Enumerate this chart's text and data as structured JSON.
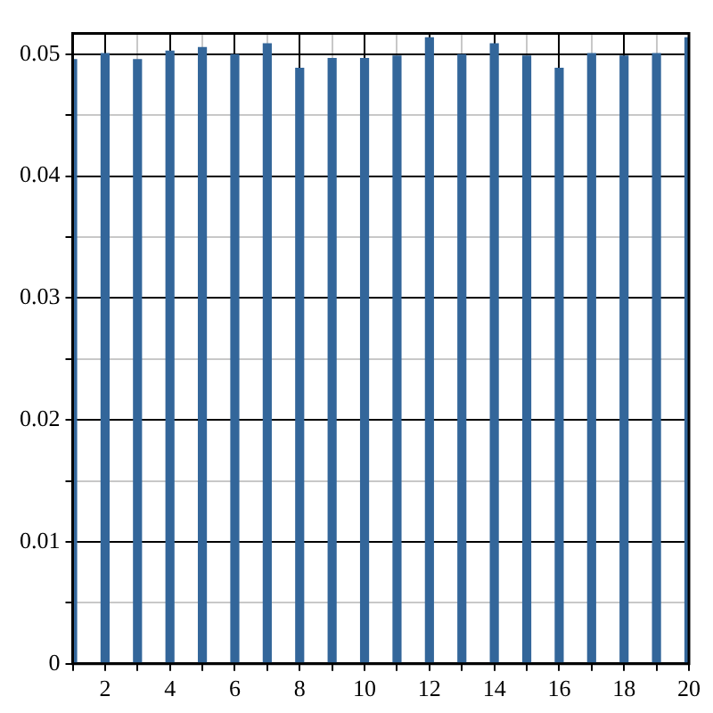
{
  "chart_data": {
    "type": "bar",
    "x": [
      1,
      2,
      3,
      4,
      5,
      6,
      7,
      8,
      9,
      10,
      11,
      12,
      13,
      14,
      15,
      16,
      17,
      18,
      19,
      20
    ],
    "values": [
      0.0496,
      0.0501,
      0.0496,
      0.0503,
      0.0506,
      0.05,
      0.0509,
      0.0489,
      0.0497,
      0.0497,
      0.0499,
      0.0514,
      0.05,
      0.0509,
      0.0499,
      0.0489,
      0.0501,
      0.0499,
      0.0501,
      0.0514
    ],
    "color": "#33669a",
    "xlim": [
      1,
      20
    ],
    "xticks": [
      {
        "value": 1,
        "label": null
      },
      2,
      {
        "value": 3,
        "label": null
      },
      4,
      {
        "value": 5,
        "label": null
      },
      6,
      {
        "value": 7,
        "label": null
      },
      8,
      {
        "value": 9,
        "label": null
      },
      10,
      {
        "value": 11,
        "label": null
      },
      12,
      {
        "value": 13,
        "label": null
      },
      14,
      {
        "value": 15,
        "label": null
      },
      16,
      {
        "value": 17,
        "label": null
      },
      18,
      {
        "value": 19,
        "label": null
      },
      20
    ],
    "ylim": [
      0,
      0.0517
    ],
    "yticks": [
      0,
      {
        "value": 0.005,
        "label": null
      },
      0.01,
      {
        "value": 0.015,
        "label": null
      },
      0.02,
      {
        "value": 0.025,
        "label": null
      },
      0.03,
      {
        "value": 0.035,
        "label": null
      },
      0.04,
      {
        "value": 0.045,
        "label": null
      },
      0.05
    ],
    "grid": true,
    "legend": false
  }
}
